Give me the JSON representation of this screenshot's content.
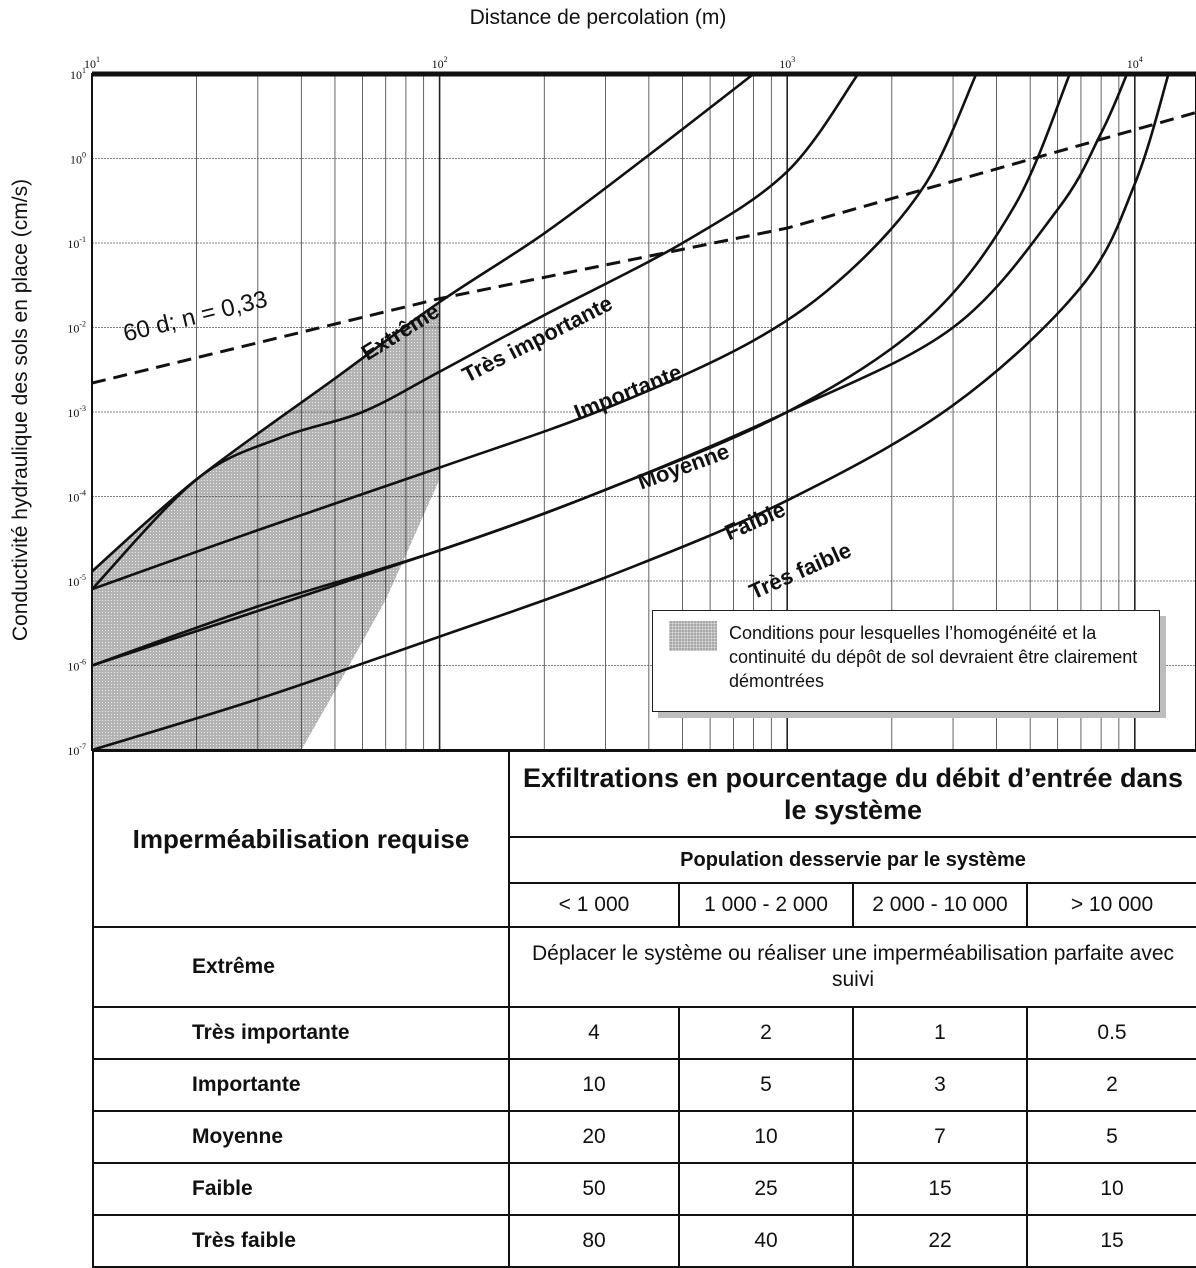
{
  "chart_data": {
    "type": "line",
    "xlabel": "Distance de percolation (m)",
    "ylabel": "Conductivité hydraulique des sols en place (cm/s)",
    "x_scale": "log",
    "y_scale": "log",
    "xlim": [
      10,
      15000
    ],
    "ylim": [
      1e-07,
      10
    ],
    "x_ticks": [
      {
        "base": "10",
        "exp": "1",
        "value": 10
      },
      {
        "base": "10",
        "exp": "2",
        "value": 100
      },
      {
        "base": "10",
        "exp": "3",
        "value": 1000
      },
      {
        "base": "10",
        "exp": "4",
        "value": 10000
      }
    ],
    "y_ticks": [
      {
        "base": "10",
        "exp": "1",
        "value": 10
      },
      {
        "base": "10",
        "exp": "0",
        "value": 1
      },
      {
        "base": "10",
        "exp": "-1",
        "value": 0.1
      },
      {
        "base": "10",
        "exp": "-2",
        "value": 0.01
      },
      {
        "base": "10",
        "exp": "-3",
        "value": 0.001
      },
      {
        "base": "10",
        "exp": "-4",
        "value": 0.0001
      },
      {
        "base": "10",
        "exp": "-5",
        "value": 1e-05
      },
      {
        "base": "10",
        "exp": "-6",
        "value": 1e-06
      },
      {
        "base": "10",
        "exp": "-7",
        "value": 1e-07
      }
    ],
    "grid": true,
    "series": [
      {
        "name": "Extrême",
        "points": [
          [
            10,
            1.3e-05
          ],
          [
            20,
            0.00016
          ],
          [
            50,
            0.0025
          ],
          [
            100,
            0.02
          ],
          [
            200,
            0.13
          ],
          [
            400,
            1.1
          ],
          [
            800,
            10
          ]
        ]
      },
      {
        "name": "Très importante",
        "points": [
          [
            10,
            8e-06
          ],
          [
            20,
            0.00016
          ],
          [
            35,
            0.0005
          ],
          [
            60,
            0.001
          ],
          [
            100,
            0.003
          ],
          [
            200,
            0.014
          ],
          [
            500,
            0.1
          ],
          [
            1000,
            0.7
          ],
          [
            1600,
            10
          ]
        ]
      },
      {
        "name": "Importante",
        "points": [
          [
            10,
            8e-06
          ],
          [
            30,
            4e-05
          ],
          [
            100,
            0.00022
          ],
          [
            300,
            0.0011
          ],
          [
            800,
            0.007
          ],
          [
            1500,
            0.045
          ],
          [
            2500,
            0.5
          ],
          [
            3500,
            10
          ]
        ]
      },
      {
        "name": "Moyenne",
        "points": [
          [
            10,
            1e-06
          ],
          [
            30,
            5e-06
          ],
          [
            100,
            2.3e-05
          ],
          [
            300,
            0.00012
          ],
          [
            1000,
            0.001
          ],
          [
            2500,
            0.012
          ],
          [
            4500,
            0.27
          ],
          [
            6500,
            10
          ]
        ]
      },
      {
        "name": "Faible",
        "points": [
          [
            10,
            1e-06
          ],
          [
            100,
            2.3e-05
          ],
          [
            300,
            0.00012
          ],
          [
            1000,
            0.001
          ],
          [
            3000,
            0.01
          ],
          [
            6000,
            0.25
          ],
          [
            8000,
            2
          ],
          [
            9500,
            10
          ]
        ]
      },
      {
        "name": "Très faible",
        "points": [
          [
            10,
            1e-07
          ],
          [
            30,
            4e-07
          ],
          [
            100,
            2.2e-06
          ],
          [
            300,
            1.1e-05
          ],
          [
            1000,
            9e-05
          ],
          [
            3000,
            0.0012
          ],
          [
            7000,
            0.03
          ],
          [
            10000,
            0.5
          ],
          [
            12500,
            10
          ]
        ]
      }
    ],
    "dashed_line": {
      "label": "60 d; n = 0,33",
      "points": [
        [
          10,
          0.0022
        ],
        [
          100,
          0.022
        ],
        [
          1000,
          0.15
        ],
        [
          15000,
          3.5
        ]
      ]
    },
    "shaded_region": {
      "label": "Conditions pour lesquelles l’homogénéité et la continuité du dépôt de sol devraient être clairement démontrées",
      "points": [
        [
          10,
          1.3e-05
        ],
        [
          20,
          0.00016
        ],
        [
          50,
          0.0025
        ],
        [
          100,
          0.02
        ],
        [
          100,
          0.00016
        ],
        [
          70,
          6e-06
        ],
        [
          50,
          5e-07
        ],
        [
          40,
          1e-07
        ],
        [
          10,
          1e-07
        ]
      ]
    },
    "legend": "bottom-right"
  },
  "table": {
    "req_header": "Imperméabilisation requise",
    "exf_header": "Exfiltrations en pourcentage du débit d’entrée dans le système",
    "pop_header": "Population desservie par le système",
    "columns": [
      "< 1 000",
      "1 000 - 2 000",
      "2 000 - 10 000",
      "> 10 000"
    ],
    "rows": [
      {
        "label": "Extrême",
        "span_text": "Déplacer le système ou réaliser une imperméabilisation parfaite avec suivi"
      },
      {
        "label": "Très importante",
        "values": [
          "4",
          "2",
          "1",
          "0.5"
        ]
      },
      {
        "label": "Importante",
        "values": [
          "10",
          "5",
          "3",
          "2"
        ]
      },
      {
        "label": "Moyenne",
        "values": [
          "20",
          "10",
          "7",
          "5"
        ]
      },
      {
        "label": "Faible",
        "values": [
          "50",
          "25",
          "15",
          "10"
        ]
      },
      {
        "label": "Très faible",
        "values": [
          "80",
          "40",
          "22",
          "15"
        ]
      }
    ]
  }
}
